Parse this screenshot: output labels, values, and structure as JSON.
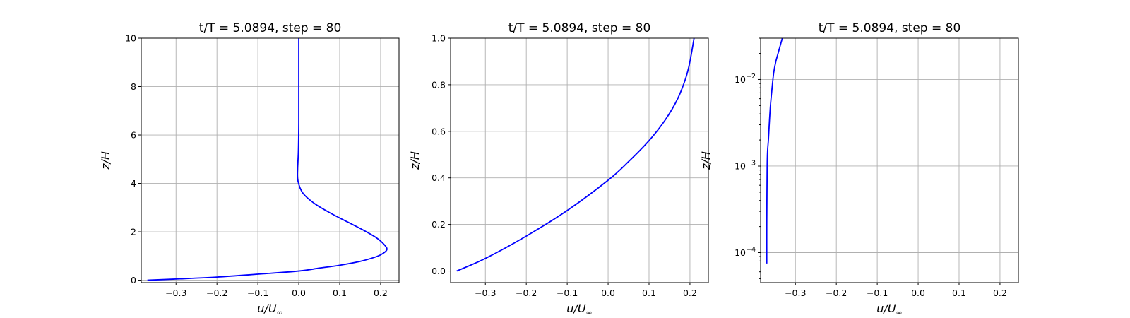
{
  "chart_data": [
    {
      "type": "line",
      "title": "t/T = 5.0894, step = 80",
      "xlabel": "u/U",
      "xlabel_sub": "∞",
      "ylabel": "z/H",
      "xlim": [
        -0.385,
        0.245
      ],
      "ylim": [
        -0.1,
        10
      ],
      "xscale": "linear",
      "yscale": "linear",
      "xticks": [
        -0.3,
        -0.2,
        -0.1,
        0.0,
        0.1,
        0.2
      ],
      "xtick_labels": [
        "−0.3",
        "−0.2",
        "−0.1",
        "0.0",
        "0.1",
        "0.2"
      ],
      "yticks": [
        0,
        2,
        4,
        6,
        8,
        10
      ],
      "ytick_labels": [
        "0",
        "2",
        "4",
        "6",
        "8",
        "10"
      ],
      "grid": true,
      "series": [
        {
          "color": "#0000ff",
          "x": [
            -0.37,
            -0.3,
            -0.2,
            -0.1,
            0.0,
            0.05,
            0.1,
            0.15,
            0.18,
            0.2,
            0.215,
            0.21,
            0.19,
            0.16,
            0.12,
            0.08,
            0.04,
            0.01,
            -0.002,
            -0.003,
            -0.001,
            0.0,
            0.0,
            0.0
          ],
          "y": [
            0.0,
            0.05,
            0.13,
            0.25,
            0.38,
            0.5,
            0.62,
            0.78,
            0.92,
            1.05,
            1.25,
            1.45,
            1.75,
            2.05,
            2.4,
            2.75,
            3.15,
            3.6,
            4.1,
            4.6,
            5.3,
            6.5,
            8.0,
            10.0
          ]
        }
      ]
    },
    {
      "type": "line",
      "title": "t/T = 5.0894, step = 80",
      "xlabel": "u/U",
      "xlabel_sub": "∞",
      "ylabel": "z/H",
      "xlim": [
        -0.385,
        0.245
      ],
      "ylim": [
        -0.05,
        1.0
      ],
      "xscale": "linear",
      "yscale": "linear",
      "xticks": [
        -0.3,
        -0.2,
        -0.1,
        0.0,
        0.1,
        0.2
      ],
      "xtick_labels": [
        "−0.3",
        "−0.2",
        "−0.1",
        "0.0",
        "0.1",
        "0.2"
      ],
      "yticks": [
        0.0,
        0.2,
        0.4,
        0.6,
        0.8,
        1.0
      ],
      "ytick_labels": [
        "0.0",
        "0.2",
        "0.4",
        "0.6",
        "0.8",
        "1.0"
      ],
      "grid": true,
      "series": [
        {
          "color": "#0000ff",
          "x": [
            -0.37,
            -0.3,
            -0.2,
            -0.1,
            0.0,
            0.05,
            0.1,
            0.14,
            0.17,
            0.19,
            0.2,
            0.21
          ],
          "y": [
            0.0,
            0.054,
            0.15,
            0.26,
            0.39,
            0.47,
            0.56,
            0.65,
            0.74,
            0.83,
            0.9,
            1.0
          ]
        }
      ]
    },
    {
      "type": "line",
      "title": "t/T = 5.0894, step = 80",
      "xlabel": "u/U",
      "xlabel_sub": "∞",
      "ylabel": "z/H",
      "xlim": [
        -0.385,
        0.245
      ],
      "ylim": [
        4.5e-05,
        0.03
      ],
      "xscale": "linear",
      "yscale": "log",
      "xticks": [
        -0.3,
        -0.2,
        -0.1,
        0.0,
        0.1,
        0.2
      ],
      "xtick_labels": [
        "−0.3",
        "−0.2",
        "−0.1",
        "0.0",
        "0.1",
        "0.2"
      ],
      "yticks": [
        0.0001,
        0.001,
        0.01
      ],
      "ytick_labels": [
        {
          "base": "10",
          "exp": "−4"
        },
        {
          "base": "10",
          "exp": "−3"
        },
        {
          "base": "10",
          "exp": "−2"
        }
      ],
      "grid": true,
      "series": [
        {
          "color": "#0000ff",
          "x": [
            -0.37,
            -0.37,
            -0.3695,
            -0.369,
            -0.368,
            -0.366,
            -0.364,
            -0.361,
            -0.357,
            -0.353,
            -0.348,
            -0.34,
            -0.332
          ],
          "y": [
            7.5e-05,
            0.0002,
            0.0005,
            0.001,
            0.0015,
            0.002,
            0.003,
            0.005,
            0.008,
            0.012,
            0.016,
            0.022,
            0.03
          ]
        }
      ]
    }
  ]
}
